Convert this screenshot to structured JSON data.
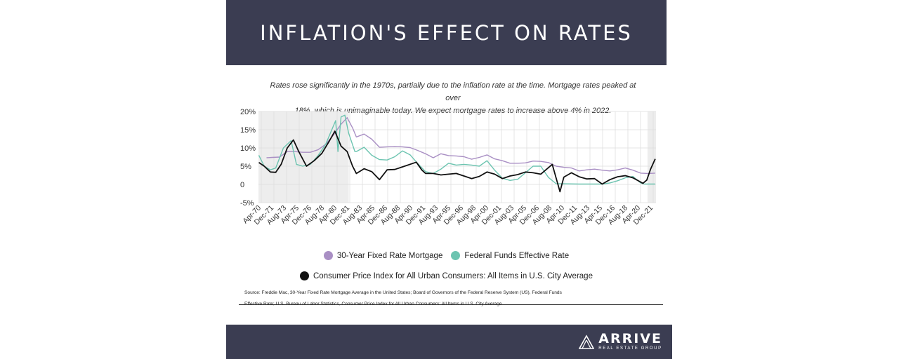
{
  "header": {
    "title": "INFLATION'S EFFECT ON RATES"
  },
  "subtitle": {
    "line1": "Rates rose significantly in the 1970s, partially due to the inflation rate at the time. Mortgage rates peaked at over",
    "line2": "18%, which is unimaginable today. We expect mortgage rates to increase above 4% in 2022."
  },
  "legend": {
    "mortgage": "30-Year Fixed Rate Mortgage",
    "fedfunds": "Federal Funds Effective Rate",
    "cpi": "Consumer Price Index for All Urban Consumers: All Items in U.S. City Average"
  },
  "source": {
    "line1": "Source:  Freddie Mac, 30-Year Fixed Rate Mortgage Average in the United States; Board of Governors of the Federal Reserve System (US), Federal Funds",
    "line2": "Effective Rate; U.S. Bureau of Labor Statistics, Consumer Price Index for All Urban Consumers: All Items in U.S. City Average"
  },
  "footer": {
    "brand": "ARRIVE",
    "tagline": "REAL ESTATE GROUP"
  },
  "colors": {
    "mortgage": "#a98fc4",
    "fedfunds": "#6cc4b0",
    "cpi": "#111111",
    "header_bg": "#3b3d52",
    "shading": "#ededed"
  },
  "chart_data": {
    "type": "line",
    "ylim": [
      -5,
      20
    ],
    "yticks": [
      20,
      15,
      10,
      5,
      0,
      -5
    ],
    "ytick_labels": [
      "20%",
      "15%",
      "10%",
      "5%",
      "0",
      "-5%"
    ],
    "xlim": [
      1970.25,
      2022.0
    ],
    "xtick_labels": [
      "Apr-70",
      "Dec-71",
      "Aug-73",
      "Apr-75",
      "Dec-76",
      "Aug-78",
      "Apr-80",
      "Dec-81",
      "Aug-83",
      "Apr-85",
      "Dec-86",
      "Aug-88",
      "Apr-90",
      "Dec-91",
      "Aug-93",
      "Apr-95",
      "Dec-96",
      "Aug-98",
      "Apr-00",
      "Dec-01",
      "Aug-03",
      "Apr-05",
      "Dec-06",
      "Aug-08",
      "Apr-10",
      "Dec-11",
      "Aug-13",
      "Apr-15",
      "Dec-16",
      "Aug-18",
      "Apr-20",
      "Dec-21"
    ],
    "shaded_ranges": [
      [
        1970.25,
        1982.0
      ],
      [
        2020.9,
        2022.0
      ]
    ],
    "grid": true,
    "series": [
      {
        "name": "30-Year Fixed Rate Mortgage",
        "points": [
          [
            1971.3,
            7.3
          ],
          [
            1972,
            7.4
          ],
          [
            1973,
            7.5
          ],
          [
            1974,
            9.0
          ],
          [
            1975,
            9.0
          ],
          [
            1976,
            8.8
          ],
          [
            1977,
            8.8
          ],
          [
            1978,
            9.5
          ],
          [
            1979,
            11.0
          ],
          [
            1980,
            13.5
          ],
          [
            1981,
            16.5
          ],
          [
            1981.8,
            18.3
          ],
          [
            1982.5,
            15.5
          ],
          [
            1983,
            13.0
          ],
          [
            1984,
            13.8
          ],
          [
            1985,
            12.4
          ],
          [
            1986,
            10.2
          ],
          [
            1987,
            10.3
          ],
          [
            1988,
            10.4
          ],
          [
            1989,
            10.3
          ],
          [
            1990,
            10.1
          ],
          [
            1991,
            9.3
          ],
          [
            1992,
            8.4
          ],
          [
            1993,
            7.3
          ],
          [
            1994,
            8.4
          ],
          [
            1995,
            7.9
          ],
          [
            1996,
            7.8
          ],
          [
            1997,
            7.6
          ],
          [
            1998,
            6.9
          ],
          [
            1999,
            7.4
          ],
          [
            2000,
            8.1
          ],
          [
            2001,
            7.0
          ],
          [
            2002,
            6.5
          ],
          [
            2003,
            5.8
          ],
          [
            2004,
            5.8
          ],
          [
            2005,
            5.9
          ],
          [
            2006,
            6.4
          ],
          [
            2007,
            6.3
          ],
          [
            2008,
            6.0
          ],
          [
            2009,
            5.0
          ],
          [
            2010,
            4.7
          ],
          [
            2011,
            4.5
          ],
          [
            2012,
            3.7
          ],
          [
            2013,
            4.0
          ],
          [
            2014,
            4.2
          ],
          [
            2015,
            3.9
          ],
          [
            2016,
            3.7
          ],
          [
            2017,
            4.0
          ],
          [
            2018,
            4.5
          ],
          [
            2019,
            3.9
          ],
          [
            2020,
            3.1
          ],
          [
            2021,
            3.0
          ],
          [
            2021.9,
            3.1
          ]
        ]
      },
      {
        "name": "Federal Funds Effective Rate",
        "points": [
          [
            1970.3,
            8.0
          ],
          [
            1971,
            5.0
          ],
          [
            1971.8,
            4.0
          ],
          [
            1972.5,
            4.5
          ],
          [
            1973.5,
            10.0
          ],
          [
            1974.5,
            12.0
          ],
          [
            1975.2,
            5.5
          ],
          [
            1976,
            5.0
          ],
          [
            1977,
            5.5
          ],
          [
            1978,
            7.9
          ],
          [
            1979,
            11.0
          ],
          [
            1980.3,
            17.5
          ],
          [
            1980.6,
            9.0
          ],
          [
            1981,
            18.5
          ],
          [
            1981.5,
            19.0
          ],
          [
            1982,
            14.0
          ],
          [
            1982.8,
            9.0
          ],
          [
            1983,
            9.0
          ],
          [
            1984,
            10.2
          ],
          [
            1985,
            8.0
          ],
          [
            1986,
            6.8
          ],
          [
            1987,
            6.7
          ],
          [
            1988,
            7.6
          ],
          [
            1989,
            9.2
          ],
          [
            1990,
            8.1
          ],
          [
            1991,
            5.7
          ],
          [
            1992,
            3.5
          ],
          [
            1993,
            3.0
          ],
          [
            1994,
            4.2
          ],
          [
            1995,
            5.8
          ],
          [
            1996,
            5.3
          ],
          [
            1997,
            5.5
          ],
          [
            1998,
            5.3
          ],
          [
            1999,
            5.0
          ],
          [
            2000,
            6.5
          ],
          [
            2001,
            3.9
          ],
          [
            2002,
            1.7
          ],
          [
            2003,
            1.1
          ],
          [
            2004,
            1.4
          ],
          [
            2005,
            3.2
          ],
          [
            2006,
            5.0
          ],
          [
            2007,
            5.0
          ],
          [
            2008,
            1.9
          ],
          [
            2009,
            0.2
          ],
          [
            2012,
            0.1
          ],
          [
            2015,
            0.1
          ],
          [
            2016,
            0.4
          ],
          [
            2017,
            1.0
          ],
          [
            2018,
            1.8
          ],
          [
            2019,
            2.2
          ],
          [
            2020,
            0.4
          ],
          [
            2020.5,
            0.1
          ],
          [
            2021.9,
            0.1
          ]
        ]
      },
      {
        "name": "Consumer Price Index for All Urban Consumers: All Items in U.S. City Average",
        "points": [
          [
            1970.3,
            6.0
          ],
          [
            1971,
            5.0
          ],
          [
            1971.8,
            3.4
          ],
          [
            1972.5,
            3.3
          ],
          [
            1973.2,
            5.5
          ],
          [
            1974,
            10.0
          ],
          [
            1974.8,
            12.2
          ],
          [
            1975.5,
            9.0
          ],
          [
            1976.5,
            5.0
          ],
          [
            1977.5,
            6.5
          ],
          [
            1978.5,
            8.5
          ],
          [
            1979.5,
            12.0
          ],
          [
            1980.2,
            14.6
          ],
          [
            1981,
            10.5
          ],
          [
            1981.8,
            9.0
          ],
          [
            1982.5,
            5.0
          ],
          [
            1983,
            3.0
          ],
          [
            1984,
            4.3
          ],
          [
            1985,
            3.5
          ],
          [
            1986,
            1.3
          ],
          [
            1987,
            4.0
          ],
          [
            1988,
            4.1
          ],
          [
            1989,
            4.8
          ],
          [
            1990.8,
            6.1
          ],
          [
            1991.5,
            4.0
          ],
          [
            1992,
            3.0
          ],
          [
            1993,
            3.0
          ],
          [
            1994,
            2.6
          ],
          [
            1995,
            2.8
          ],
          [
            1996,
            3.0
          ],
          [
            1997,
            2.3
          ],
          [
            1998,
            1.6
          ],
          [
            1999,
            2.2
          ],
          [
            2000,
            3.4
          ],
          [
            2001,
            2.8
          ],
          [
            2002,
            1.6
          ],
          [
            2003,
            2.3
          ],
          [
            2004,
            2.7
          ],
          [
            2005,
            3.4
          ],
          [
            2006,
            3.2
          ],
          [
            2007,
            2.8
          ],
          [
            2008.5,
            5.5
          ],
          [
            2009.5,
            -2.0
          ],
          [
            2010,
            2.0
          ],
          [
            2011,
            3.2
          ],
          [
            2012,
            2.1
          ],
          [
            2013,
            1.5
          ],
          [
            2014,
            1.6
          ],
          [
            2015,
            0.1
          ],
          [
            2016,
            1.3
          ],
          [
            2017,
            2.1
          ],
          [
            2018,
            2.4
          ],
          [
            2019,
            1.8
          ],
          [
            2020.3,
            0.3
          ],
          [
            2020.8,
            1.2
          ],
          [
            2021.3,
            4.2
          ],
          [
            2021.9,
            7.0
          ]
        ]
      }
    ]
  }
}
